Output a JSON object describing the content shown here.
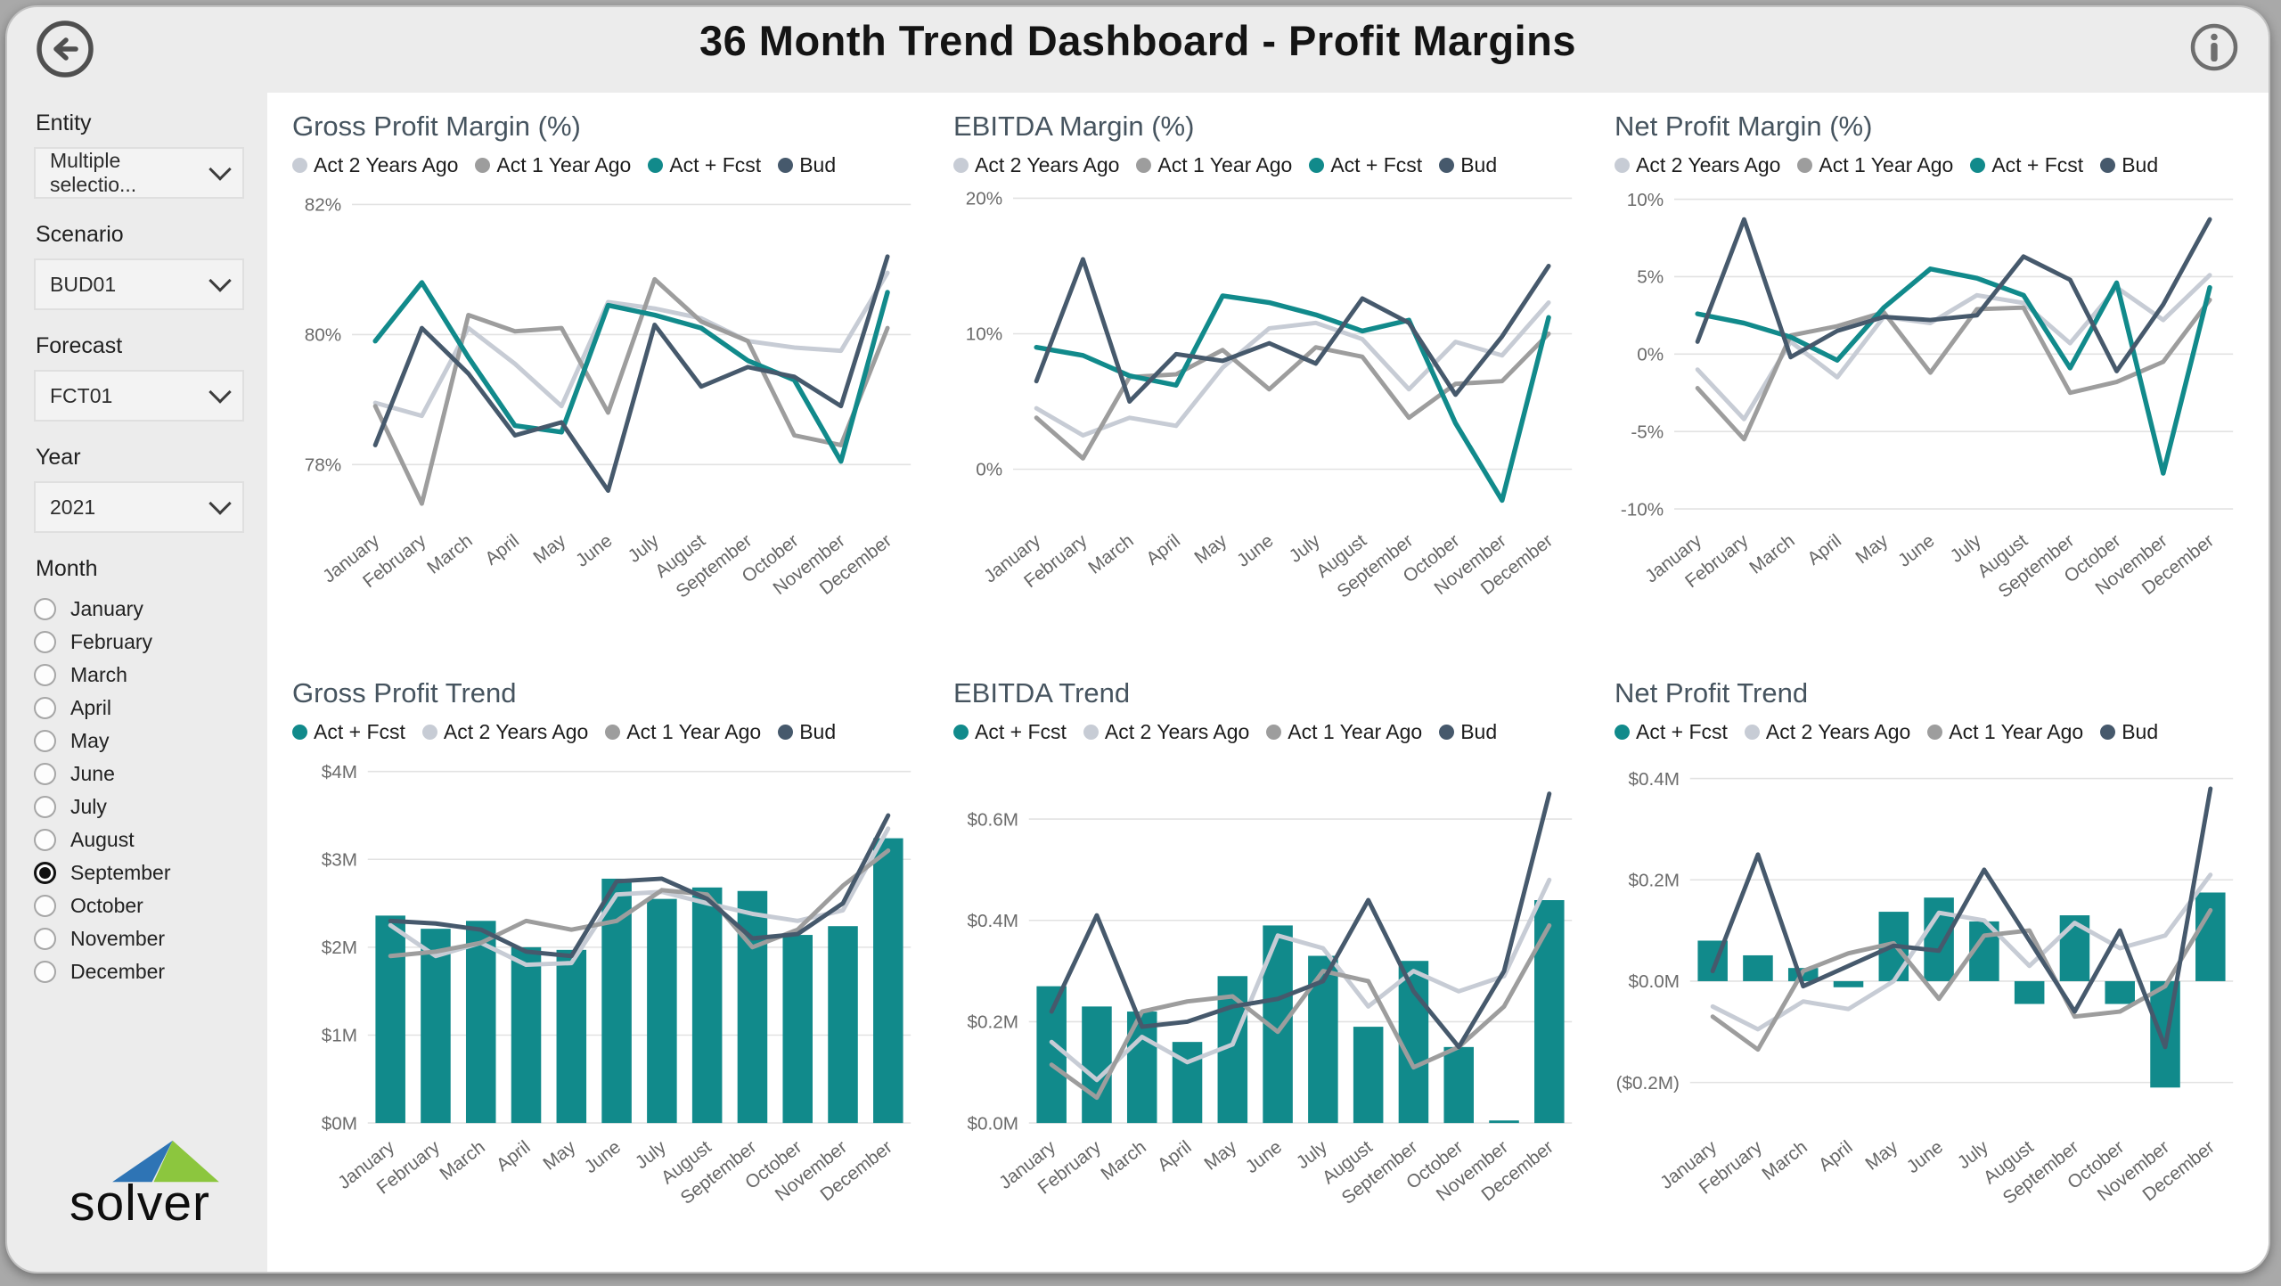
{
  "header": {
    "title": "36 Month Trend Dashboard - Profit Margins",
    "back_icon": "arrow-left-circle",
    "info_icon": "info-circle"
  },
  "sidebar": {
    "filters": [
      {
        "label": "Entity",
        "value": "Multiple selectio..."
      },
      {
        "label": "Scenario",
        "value": "BUD01"
      },
      {
        "label": "Forecast",
        "value": "FCT01"
      },
      {
        "label": "Year",
        "value": "2021"
      }
    ],
    "month": {
      "label": "Month",
      "options": [
        "January",
        "February",
        "March",
        "April",
        "May",
        "June",
        "July",
        "August",
        "September",
        "October",
        "November",
        "December"
      ],
      "selected": "September"
    },
    "logo_text": "solver"
  },
  "colors": {
    "act2": "#c7ccd5",
    "act1": "#9d9d9d",
    "actfcst": "#118a8b",
    "bud": "#46596c",
    "title": "#46545f",
    "axis": "#6b6b6b",
    "grid": "#e2e2e2"
  },
  "chart_data": [
    {
      "type": "line",
      "title": "Gross Profit Margin (%)",
      "ylabel": "",
      "xlabel": "",
      "ylim": [
        77.2,
        82.2
      ],
      "yticks": [
        {
          "v": 82,
          "label": "82%"
        },
        {
          "v": 80,
          "label": "80%"
        },
        {
          "v": 78,
          "label": "78%"
        }
      ],
      "categories": [
        "January",
        "February",
        "March",
        "April",
        "May",
        "June",
        "July",
        "August",
        "September",
        "October",
        "November",
        "December"
      ],
      "series": [
        {
          "name": "Act 2 Years Ago",
          "color": "act2",
          "kind": "line",
          "values": [
            78.95,
            78.75,
            80.1,
            79.55,
            78.9,
            80.5,
            80.4,
            80.25,
            79.9,
            79.8,
            79.75,
            80.95
          ]
        },
        {
          "name": "Act 1 Year Ago",
          "color": "act1",
          "kind": "line",
          "values": [
            78.9,
            77.4,
            80.3,
            80.05,
            80.1,
            78.8,
            80.85,
            80.2,
            79.9,
            78.45,
            78.3,
            80.1
          ]
        },
        {
          "name": "Act + Fcst",
          "color": "actfcst",
          "kind": "line",
          "values": [
            79.9,
            80.8,
            79.65,
            78.6,
            78.5,
            80.45,
            80.3,
            80.1,
            79.6,
            79.3,
            78.05,
            80.65
          ]
        },
        {
          "name": "Bud",
          "color": "bud",
          "kind": "line",
          "values": [
            78.3,
            80.1,
            79.4,
            78.45,
            78.65,
            77.6,
            80.15,
            79.2,
            79.5,
            79.35,
            78.9,
            81.2
          ]
        }
      ]
    },
    {
      "type": "line",
      "title": "EBITDA Margin (%)",
      "ylabel": "",
      "xlabel": "",
      "ylim": [
        -3.5,
        20.5
      ],
      "yticks": [
        {
          "v": 20,
          "label": "20%"
        },
        {
          "v": 10,
          "label": "10%"
        },
        {
          "v": 0,
          "label": "0%"
        }
      ],
      "categories": [
        "January",
        "February",
        "March",
        "April",
        "May",
        "June",
        "July",
        "August",
        "September",
        "October",
        "November",
        "December"
      ],
      "series": [
        {
          "name": "Act 2 Years Ago",
          "color": "act2",
          "kind": "line",
          "values": [
            4.5,
            2.5,
            3.8,
            3.2,
            7.5,
            10.4,
            10.8,
            9.6,
            5.9,
            9.4,
            8.4,
            12.3
          ]
        },
        {
          "name": "Act 1 Year Ago",
          "color": "act1",
          "kind": "line",
          "values": [
            3.8,
            0.8,
            6.8,
            7.0,
            8.8,
            5.9,
            9.0,
            8.3,
            3.8,
            6.3,
            6.5,
            10.0
          ]
        },
        {
          "name": "Act + Fcst",
          "color": "actfcst",
          "kind": "line",
          "values": [
            9.0,
            8.4,
            6.9,
            6.2,
            12.8,
            12.3,
            11.4,
            10.2,
            11.0,
            3.4,
            -2.3,
            11.2
          ]
        },
        {
          "name": "Bud",
          "color": "bud",
          "kind": "line",
          "values": [
            6.5,
            15.5,
            5.0,
            8.5,
            8.0,
            9.3,
            7.8,
            12.6,
            10.8,
            5.5,
            9.8,
            15.0
          ]
        }
      ]
    },
    {
      "type": "line",
      "title": "Net Profit Margin (%)",
      "ylabel": "",
      "xlabel": "",
      "ylim": [
        -10.5,
        10.5
      ],
      "yticks": [
        {
          "v": 10,
          "label": "10%"
        },
        {
          "v": 5,
          "label": "5%"
        },
        {
          "v": 0,
          "label": "0%"
        },
        {
          "v": -5,
          "label": "-5%"
        },
        {
          "v": -10,
          "label": "-10%"
        }
      ],
      "categories": [
        "January",
        "February",
        "March",
        "April",
        "May",
        "June",
        "July",
        "August",
        "September",
        "October",
        "November",
        "December"
      ],
      "series": [
        {
          "name": "Act 2 Years Ago",
          "color": "act2",
          "kind": "line",
          "values": [
            -1.0,
            -4.2,
            0.8,
            -1.5,
            2.4,
            2.0,
            3.8,
            3.3,
            0.7,
            4.3,
            2.2,
            5.1
          ]
        },
        {
          "name": "Act 1 Year Ago",
          "color": "act1",
          "kind": "line",
          "values": [
            -2.2,
            -5.5,
            1.2,
            1.8,
            2.7,
            -1.2,
            2.9,
            3.0,
            -2.5,
            -1.8,
            -0.5,
            3.5
          ]
        },
        {
          "name": "Act + Fcst",
          "color": "actfcst",
          "kind": "line",
          "values": [
            2.6,
            2.0,
            1.1,
            -0.4,
            3.0,
            5.5,
            4.9,
            3.8,
            -0.9,
            4.6,
            -7.7,
            4.3
          ]
        },
        {
          "name": "Bud",
          "color": "bud",
          "kind": "line",
          "values": [
            0.8,
            8.7,
            -0.2,
            1.5,
            2.4,
            2.2,
            2.5,
            6.3,
            4.8,
            -1.1,
            3.2,
            8.7
          ]
        }
      ]
    },
    {
      "type": "combo",
      "title": "Gross Profit Trend",
      "ylabel": "",
      "xlabel": "",
      "ylim": [
        0,
        4.15
      ],
      "yticks": [
        {
          "v": 4,
          "label": "$4M"
        },
        {
          "v": 3,
          "label": "$3M"
        },
        {
          "v": 2,
          "label": "$2M"
        },
        {
          "v": 1,
          "label": "$1M"
        },
        {
          "v": 0,
          "label": "$0M"
        }
      ],
      "categories": [
        "January",
        "February",
        "March",
        "April",
        "May",
        "June",
        "July",
        "August",
        "September",
        "October",
        "November",
        "December"
      ],
      "series": [
        {
          "name": "Act + Fcst",
          "color": "actfcst",
          "kind": "bar",
          "values": [
            2.36,
            2.21,
            2.3,
            2.0,
            1.97,
            2.78,
            2.55,
            2.68,
            2.64,
            2.14,
            2.24,
            3.24
          ]
        },
        {
          "name": "Act 2 Years Ago",
          "color": "act2",
          "kind": "line",
          "values": [
            2.25,
            1.9,
            2.05,
            1.8,
            1.82,
            2.6,
            2.63,
            2.5,
            2.38,
            2.3,
            2.42,
            3.35
          ]
        },
        {
          "name": "Act 1 Year Ago",
          "color": "act1",
          "kind": "line",
          "values": [
            1.9,
            1.95,
            2.05,
            2.3,
            2.2,
            2.3,
            2.65,
            2.6,
            2.0,
            2.2,
            2.7,
            3.1
          ]
        },
        {
          "name": "Bud",
          "color": "bud",
          "kind": "line",
          "values": [
            2.3,
            2.27,
            2.2,
            1.95,
            1.9,
            2.75,
            2.78,
            2.55,
            2.1,
            2.15,
            2.5,
            3.5
          ]
        }
      ]
    },
    {
      "type": "combo",
      "title": "EBITDA Trend",
      "ylabel": "",
      "xlabel": "",
      "ylim": [
        0,
        0.72
      ],
      "yticks": [
        {
          "v": 0.6,
          "label": "$0.6M"
        },
        {
          "v": 0.4,
          "label": "$0.4M"
        },
        {
          "v": 0.2,
          "label": "$0.2M"
        },
        {
          "v": 0,
          "label": "$0.0M"
        }
      ],
      "categories": [
        "January",
        "February",
        "March",
        "April",
        "May",
        "June",
        "July",
        "August",
        "September",
        "October",
        "November",
        "December"
      ],
      "series": [
        {
          "name": "Act + Fcst",
          "color": "actfcst",
          "kind": "bar",
          "values": [
            0.27,
            0.23,
            0.22,
            0.16,
            0.29,
            0.39,
            0.33,
            0.19,
            0.32,
            0.15,
            0.005,
            0.44
          ]
        },
        {
          "name": "Act 2 Years Ago",
          "color": "act2",
          "kind": "line",
          "values": [
            0.16,
            0.085,
            0.17,
            0.12,
            0.155,
            0.37,
            0.345,
            0.23,
            0.3,
            0.26,
            0.29,
            0.48
          ]
        },
        {
          "name": "Act 1 Year Ago",
          "color": "act1",
          "kind": "line",
          "values": [
            0.115,
            0.05,
            0.22,
            0.24,
            0.25,
            0.18,
            0.3,
            0.28,
            0.11,
            0.15,
            0.23,
            0.39
          ]
        },
        {
          "name": "Bud",
          "color": "bud",
          "kind": "line",
          "values": [
            0.22,
            0.41,
            0.19,
            0.2,
            0.23,
            0.245,
            0.28,
            0.44,
            0.26,
            0.15,
            0.3,
            0.65
          ]
        }
      ]
    },
    {
      "type": "combo",
      "title": "Net Profit Trend",
      "ylabel": "",
      "xlabel": "",
      "ylim": [
        -0.28,
        0.44
      ],
      "yticks": [
        {
          "v": 0.4,
          "label": "$0.4M"
        },
        {
          "v": 0.2,
          "label": "$0.2M"
        },
        {
          "v": 0,
          "label": "$0.0M"
        },
        {
          "v": -0.2,
          "label": "($0.2M)"
        }
      ],
      "categories": [
        "January",
        "February",
        "March",
        "April",
        "May",
        "June",
        "July",
        "August",
        "September",
        "October",
        "November",
        "December"
      ],
      "series": [
        {
          "name": "Act + Fcst",
          "color": "actfcst",
          "kind": "bar",
          "values": [
            0.08,
            0.051,
            0.026,
            -0.012,
            0.137,
            0.165,
            0.118,
            -0.045,
            0.13,
            -0.045,
            -0.21,
            0.175
          ]
        },
        {
          "name": "Act 2 Years Ago",
          "color": "act2",
          "kind": "line",
          "values": [
            -0.05,
            -0.095,
            -0.04,
            -0.055,
            0.0,
            0.135,
            0.12,
            0.03,
            0.115,
            0.065,
            0.09,
            0.21
          ]
        },
        {
          "name": "Act 1 Year Ago",
          "color": "act1",
          "kind": "line",
          "values": [
            -0.07,
            -0.135,
            0.02,
            0.055,
            0.075,
            -0.035,
            0.09,
            0.1,
            -0.07,
            -0.06,
            -0.01,
            0.14
          ]
        },
        {
          "name": "Bud",
          "color": "bud",
          "kind": "line",
          "values": [
            0.02,
            0.25,
            -0.01,
            0.03,
            0.07,
            0.06,
            0.22,
            0.08,
            -0.06,
            0.1,
            -0.13,
            0.38
          ]
        }
      ]
    }
  ]
}
